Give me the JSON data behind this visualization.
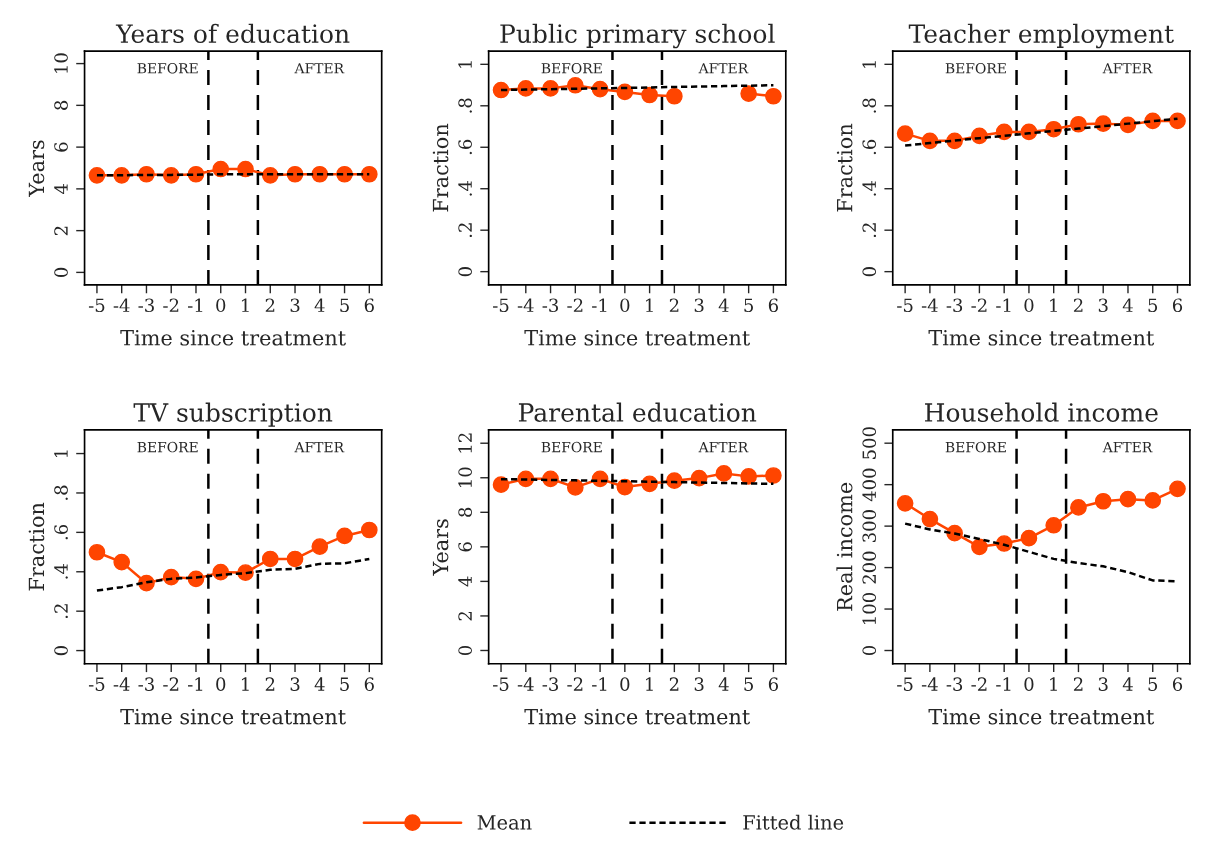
{
  "chart_data": [
    {
      "type": "line",
      "title": "Years of education",
      "xlabel": "Time since treatment",
      "ylabel": "Years",
      "x": [
        -5,
        -4,
        -3,
        -2,
        -1,
        0,
        1,
        2,
        3,
        4,
        5,
        6
      ],
      "xlim": [
        -5.5,
        6.5
      ],
      "xticks": [
        -5,
        -4,
        -3,
        -2,
        -1,
        0,
        1,
        2,
        3,
        4,
        5,
        6
      ],
      "ylim": [
        -0.6,
        10.6
      ],
      "yticks": [
        0,
        2,
        4,
        6,
        8,
        10
      ],
      "legend": "bottom",
      "series": [
        {
          "name": "Mean",
          "color": "#ff4500",
          "marker": "circle",
          "line_style": "solid",
          "values": [
            4.65,
            4.65,
            4.7,
            4.65,
            4.7,
            4.95,
            4.95,
            4.65,
            4.7,
            4.7,
            4.7,
            4.7
          ]
        },
        {
          "name": "Fitted line",
          "color": "#000000",
          "marker": "none",
          "line_style": "dashed",
          "values": [
            4.65,
            4.65,
            4.67,
            4.67,
            4.68,
            4.7,
            4.7,
            4.7,
            4.7,
            4.7,
            4.7,
            4.7
          ]
        }
      ],
      "ref_lines": [
        {
          "axis": "x",
          "value": -0.5,
          "color": "#000000",
          "line_style": "dashed"
        },
        {
          "axis": "x",
          "value": 1.5,
          "color": "#000000",
          "line_style": "dashed"
        }
      ],
      "annotations": [
        "BEFORE",
        "AFTER"
      ]
    },
    {
      "type": "line",
      "title": "Public primary school",
      "xlabel": "Time since treatment",
      "ylabel": "Fraction",
      "x": [
        -5,
        -4,
        -3,
        -2,
        -1,
        0,
        1,
        2,
        3,
        4,
        5,
        6
      ],
      "xlim": [
        -5.5,
        6.5
      ],
      "xticks": [
        -5,
        -4,
        -3,
        -2,
        -1,
        0,
        1,
        2,
        3,
        4,
        5,
        6
      ],
      "ylim": [
        -0.064,
        1.064
      ],
      "yticks": [
        0,
        {
          "value": 0.2,
          "label": ".2"
        },
        {
          "value": 0.4,
          "label": ".4"
        },
        {
          "value": 0.6,
          "label": ".6"
        },
        {
          "value": 0.8,
          "label": ".8"
        },
        1
      ],
      "series": [
        {
          "color": "#ff4500",
          "marker": "circle",
          "line_style": "solid",
          "values": [
            0.876,
            0.884,
            0.884,
            0.899,
            0.88,
            0.867,
            0.852,
            0.846,
            null,
            null,
            0.859,
            0.846
          ]
        },
        {
          "color": "#000000",
          "marker": "none",
          "line_style": "dashed",
          "values": [
            0.876,
            0.878,
            0.88,
            0.882,
            0.884,
            0.886,
            0.888,
            0.891,
            0.893,
            0.895,
            0.897,
            0.899
          ]
        }
      ],
      "ref_lines": [
        {
          "axis": "x",
          "value": -0.5,
          "color": "#000000",
          "line_style": "dashed"
        },
        {
          "axis": "x",
          "value": 1.5,
          "color": "#000000",
          "line_style": "dashed"
        }
      ],
      "annotations": [
        "BEFORE",
        "AFTER"
      ]
    },
    {
      "type": "line",
      "title": "Teacher employment",
      "xlabel": "Time since treatment",
      "ylabel": "Fraction",
      "x": [
        -5,
        -4,
        -3,
        -2,
        -1,
        0,
        1,
        2,
        3,
        4,
        5,
        6
      ],
      "xlim": [
        -5.5,
        6.5
      ],
      "xticks": [
        -5,
        -4,
        -3,
        -2,
        -1,
        0,
        1,
        2,
        3,
        4,
        5,
        6
      ],
      "ylim": [
        -0.064,
        1.064
      ],
      "yticks": [
        0,
        {
          "value": 0.2,
          "label": ".2"
        },
        {
          "value": 0.4,
          "label": ".4"
        },
        {
          "value": 0.6,
          "label": ".6"
        },
        {
          "value": 0.8,
          "label": ".8"
        },
        1
      ],
      "series": [
        {
          "color": "#ff4500",
          "marker": "circle",
          "line_style": "solid",
          "values": [
            0.666,
            0.631,
            0.631,
            0.655,
            0.674,
            0.674,
            0.687,
            0.711,
            0.714,
            0.708,
            0.727,
            0.727
          ]
        },
        {
          "color": "#000000",
          "marker": "none",
          "line_style": "dashed",
          "values": [
            0.608,
            0.62,
            0.632,
            0.644,
            0.655,
            0.667,
            0.679,
            0.69,
            0.702,
            0.714,
            0.726,
            0.738
          ]
        }
      ],
      "ref_lines": [
        {
          "axis": "x",
          "value": -0.5,
          "color": "#000000",
          "line_style": "dashed"
        },
        {
          "axis": "x",
          "value": 1.5,
          "color": "#000000",
          "line_style": "dashed"
        }
      ],
      "annotations": [
        "BEFORE",
        "AFTER"
      ]
    },
    {
      "type": "line",
      "title": "TV subscription",
      "xlabel": "Time since treatment",
      "ylabel": "Fraction",
      "x": [
        -5,
        -4,
        -3,
        -2,
        -1,
        0,
        1,
        2,
        3,
        4,
        5,
        6
      ],
      "xlim": [
        -5.5,
        6.5
      ],
      "xticks": [
        -5,
        -4,
        -3,
        -2,
        -1,
        0,
        1,
        2,
        3,
        4,
        5,
        6
      ],
      "ylim": [
        -0.067,
        1.12
      ],
      "yticks": [
        0,
        {
          "value": 0.2,
          "label": ".2"
        },
        {
          "value": 0.4,
          "label": ".4"
        },
        {
          "value": 0.6,
          "label": ".6"
        },
        {
          "value": 0.8,
          "label": ".8"
        },
        1
      ],
      "series": [
        {
          "color": "#ff4500",
          "marker": "circle",
          "line_style": "solid",
          "values": [
            0.499,
            0.449,
            0.342,
            0.373,
            0.364,
            0.398,
            0.396,
            0.465,
            0.465,
            0.528,
            0.582,
            0.612
          ]
        },
        {
          "color": "#000000",
          "marker": "none",
          "line_style": "dashed",
          "values": [
            0.305,
            0.322,
            0.347,
            0.364,
            0.371,
            0.384,
            0.393,
            0.41,
            0.415,
            0.44,
            0.443,
            0.465
          ]
        }
      ],
      "ref_lines": [
        {
          "axis": "x",
          "value": -0.5,
          "color": "#000000",
          "line_style": "dashed"
        },
        {
          "axis": "x",
          "value": 1.5,
          "color": "#000000",
          "line_style": "dashed"
        }
      ],
      "annotations": [
        "BEFORE",
        "AFTER"
      ]
    },
    {
      "type": "line",
      "title": "Parental education",
      "xlabel": "Time since treatment",
      "ylabel": "Years",
      "x": [
        -5,
        -4,
        -3,
        -2,
        -1,
        0,
        1,
        2,
        3,
        4,
        5,
        6
      ],
      "xlim": [
        -5.5,
        6.5
      ],
      "xticks": [
        -5,
        -4,
        -3,
        -2,
        -1,
        0,
        1,
        2,
        3,
        4,
        5,
        6
      ],
      "ylim": [
        -0.77,
        12.77
      ],
      "yticks": [
        0,
        2,
        4,
        6,
        8,
        10,
        12
      ],
      "series": [
        {
          "color": "#ff4500",
          "marker": "circle",
          "line_style": "solid",
          "values": [
            9.6,
            9.94,
            9.94,
            9.44,
            9.94,
            9.46,
            9.65,
            9.83,
            9.98,
            10.25,
            10.08,
            10.13
          ]
        },
        {
          "color": "#000000",
          "marker": "none",
          "line_style": "dashed",
          "values": [
            9.92,
            9.9,
            9.87,
            9.85,
            9.82,
            9.8,
            9.77,
            9.75,
            9.72,
            9.7,
            9.67,
            9.65
          ]
        }
      ],
      "ref_lines": [
        {
          "axis": "x",
          "value": -0.5,
          "color": "#000000",
          "line_style": "dashed"
        },
        {
          "axis": "x",
          "value": 1.5,
          "color": "#000000",
          "line_style": "dashed"
        }
      ],
      "annotations": [
        "BEFORE",
        "AFTER"
      ]
    },
    {
      "type": "line",
      "title": "Household income",
      "xlabel": "Time since treatment",
      "ylabel": "Real income",
      "x": [
        -5,
        -4,
        -3,
        -2,
        -1,
        0,
        1,
        2,
        3,
        4,
        5,
        6
      ],
      "xlim": [
        -5.5,
        6.5
      ],
      "xticks": [
        -5,
        -4,
        -3,
        -2,
        -1,
        0,
        1,
        2,
        3,
        4,
        5,
        6
      ],
      "ylim": [
        -32,
        532
      ],
      "yticks": [
        0,
        100,
        200,
        300,
        400,
        500
      ],
      "series": [
        {
          "color": "#ff4500",
          "marker": "circle",
          "line_style": "solid",
          "values": [
            355,
            317,
            283,
            250,
            258,
            271,
            302,
            345,
            360,
            365,
            362,
            390
          ]
        },
        {
          "color": "#000000",
          "marker": "none",
          "line_style": "dashed",
          "values": [
            306,
            292,
            282,
            269,
            255,
            238,
            221,
            211,
            203,
            189,
            169,
            167
          ]
        }
      ],
      "ref_lines": [
        {
          "axis": "x",
          "value": -0.5,
          "color": "#000000",
          "line_style": "dashed"
        },
        {
          "axis": "x",
          "value": 1.5,
          "color": "#000000",
          "line_style": "dashed"
        }
      ],
      "annotations": [
        "BEFORE",
        "AFTER"
      ]
    }
  ]
}
